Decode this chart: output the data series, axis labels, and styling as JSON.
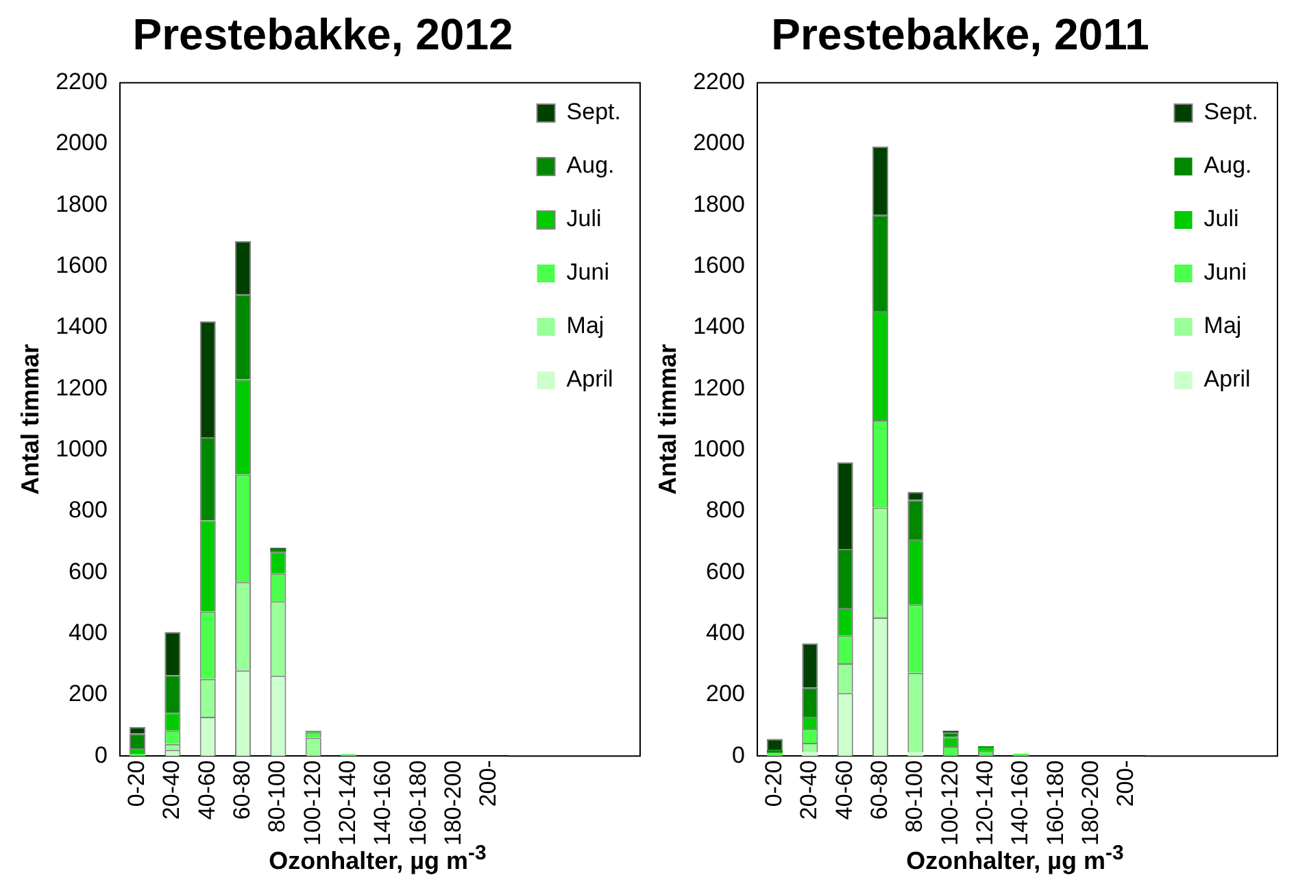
{
  "chart_data": [
    {
      "type": "bar",
      "title": "Prestebakke, 2012",
      "xlabel": "Ozonhalter, µg m$^{-3}$",
      "ylabel": "Antal timmar",
      "categories": [
        "0-20",
        "20-40",
        "40-60",
        "60-80",
        "80-100",
        "100-120",
        "120-140",
        "140-160",
        "160-180",
        "180-200",
        "200-"
      ],
      "stacked": true,
      "ylim": [
        0,
        2200
      ],
      "yticks": [
        0,
        200,
        400,
        600,
        800,
        1000,
        1200,
        1400,
        1600,
        1800,
        2000,
        2200
      ],
      "grid": false,
      "legend": "top right",
      "series": [
        {
          "name": "April",
          "color": "#ccffcc",
          "values": [
            0,
            20,
            128,
            280,
            263,
            0,
            0,
            0,
            0,
            0,
            0
          ]
        },
        {
          "name": "Maj",
          "color": "#99ff99",
          "values": [
            0,
            19,
            124,
            289,
            243,
            60,
            0,
            0,
            0,
            0,
            0
          ]
        },
        {
          "name": "Juni",
          "color": "#4dff4d",
          "values": [
            7,
            43,
            220,
            351,
            91,
            18,
            6,
            0,
            0,
            0,
            0
          ]
        },
        {
          "name": "Juli",
          "color": "#00cc00",
          "values": [
            18,
            59,
            298,
            311,
            70,
            4,
            0,
            0,
            0,
            0,
            0
          ]
        },
        {
          "name": "Aug.",
          "color": "#008800",
          "values": [
            48,
            123,
            272,
            277,
            10,
            0,
            0,
            0,
            0,
            0,
            0
          ]
        },
        {
          "name": "Sept.",
          "color": "#004000",
          "values": [
            22,
            141,
            378,
            175,
            3,
            0,
            0,
            0,
            0,
            0,
            0
          ]
        }
      ]
    },
    {
      "type": "bar",
      "title": "Prestebakke, 2011",
      "xlabel": "Ozonhalter, µg m$^{-3}$",
      "ylabel": "Antal timmar",
      "categories": [
        "0-20",
        "20-40",
        "40-60",
        "60-80",
        "80-100",
        "100-120",
        "120-140",
        "140-160",
        "160-180",
        "180-200",
        "200-"
      ],
      "stacked": true,
      "ylim": [
        0,
        2200
      ],
      "yticks": [
        0,
        200,
        400,
        600,
        800,
        1000,
        1200,
        1400,
        1600,
        1800,
        2000,
        2200
      ],
      "grid": false,
      "legend": "top right",
      "series": [
        {
          "name": "April",
          "color": "#ccffcc",
          "values": [
            0,
            12,
            206,
            453,
            12,
            0,
            0,
            0,
            0,
            0,
            0
          ]
        },
        {
          "name": "Maj",
          "color": "#99ff99",
          "values": [
            0,
            31,
            97,
            359,
            260,
            0,
            0,
            0,
            0,
            0,
            0
          ]
        },
        {
          "name": "Juni",
          "color": "#4dff4d",
          "values": [
            10,
            47,
            91,
            286,
            223,
            32,
            17,
            8,
            0,
            0,
            0
          ]
        },
        {
          "name": "Juli",
          "color": "#00cc00",
          "values": [
            0,
            38,
            90,
            356,
            213,
            30,
            10,
            0,
            0,
            0,
            0
          ]
        },
        {
          "name": "Aug.",
          "color": "#008800",
          "values": [
            10,
            96,
            193,
            314,
            129,
            15,
            5,
            0,
            0,
            0,
            0
          ]
        },
        {
          "name": "Sept.",
          "color": "#004000",
          "values": [
            36,
            144,
            283,
            224,
            26,
            5,
            0,
            0,
            0,
            0,
            0
          ]
        }
      ]
    }
  ]
}
